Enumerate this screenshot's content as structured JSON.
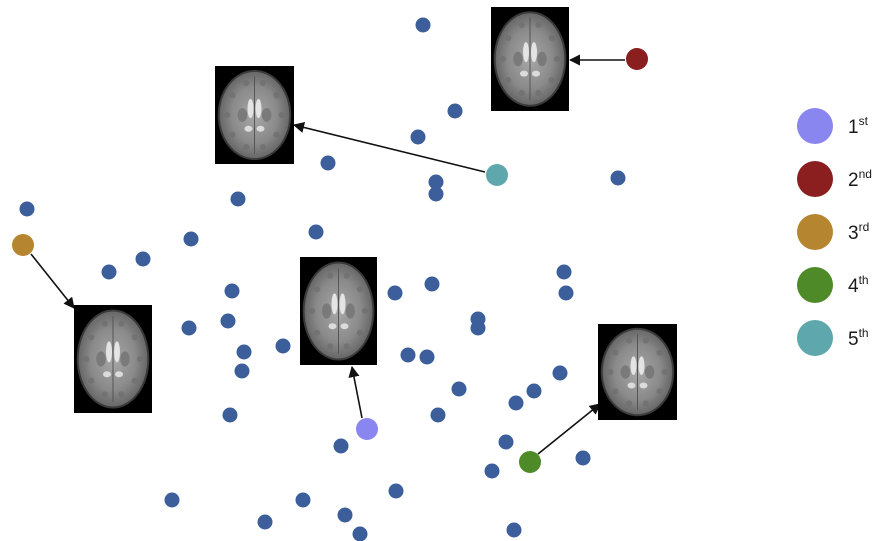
{
  "background_points": {
    "color": "#3c5f9c",
    "count": 46
  },
  "highlighted": [
    {
      "rank": "1",
      "suffix": "st",
      "color": "#8a86f0",
      "thumb_icon": "brain-mri-slice-icon"
    },
    {
      "rank": "2",
      "suffix": "nd",
      "color": "#8b1e1e",
      "thumb_icon": "brain-mri-slice-icon"
    },
    {
      "rank": "3",
      "suffix": "rd",
      "color": "#b5852f",
      "thumb_icon": "brain-mri-slice-icon"
    },
    {
      "rank": "4",
      "suffix": "th",
      "color": "#4e8a28",
      "thumb_icon": "brain-mri-slice-icon"
    },
    {
      "rank": "5",
      "suffix": "th",
      "color": "#5ea7ad",
      "thumb_icon": "brain-mri-slice-icon"
    }
  ],
  "arrow_color": "#111111",
  "thumbnail_background": "#000000"
}
